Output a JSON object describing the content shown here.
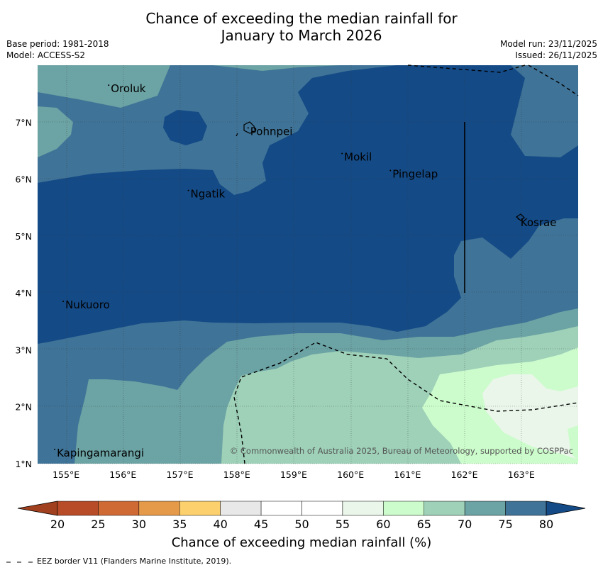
{
  "header": {
    "title_line1": "Chance of exceeding the median rainfall for",
    "title_line2": "January to March 2026",
    "base_period": "Base period: 1981-2018",
    "model": "Model: ACCESS-S2",
    "model_run": "Model run: 23/11/2025",
    "issued": "Issued: 26/11/2025"
  },
  "map": {
    "lon_ticks": [
      "155°E",
      "156°E",
      "157°E",
      "158°E",
      "159°E",
      "160°E",
      "161°E",
      "162°E",
      "163°E"
    ],
    "lat_ticks": [
      "7°N",
      "6°N",
      "5°N",
      "4°N",
      "3°N",
      "2°N",
      "1°N"
    ],
    "places": [
      {
        "name": "Oroluk",
        "lon": 155.75,
        "lat": 7.65
      },
      {
        "name": "Pohnpei",
        "lon": 158.2,
        "lat": 6.9
      },
      {
        "name": "Mokil",
        "lon": 159.85,
        "lat": 6.45
      },
      {
        "name": "Pingelap",
        "lon": 160.7,
        "lat": 6.15
      },
      {
        "name": "Ngatik",
        "lon": 157.15,
        "lat": 5.8
      },
      {
        "name": "Kosrae",
        "lon": 162.95,
        "lat": 5.3
      },
      {
        "name": "Nukuoro",
        "lon": 154.95,
        "lat": 3.85
      },
      {
        "name": "Kapingamarangi",
        "lon": 154.8,
        "lat": 1.25
      }
    ],
    "copyright": "© Commonwealth of Australia 2025, Bureau of Meteorology, supported by COSPPac"
  },
  "colorbar": {
    "levels": [
      20,
      25,
      30,
      35,
      40,
      45,
      50,
      55,
      60,
      65,
      70,
      75,
      80
    ],
    "labels": [
      "20",
      "25",
      "30",
      "35",
      "40",
      "45",
      "50",
      "55",
      "60",
      "65",
      "70",
      "75",
      "80"
    ],
    "colors": [
      "#a0401e",
      "#b84b28",
      "#d06a35",
      "#e59a4a",
      "#fdd06e",
      "#e8e8e8",
      "#ffffff",
      "#ffffff",
      "#eaf6ea",
      "#ccfccc",
      "#9ed1b8",
      "#6ca3a4",
      "#3f7397",
      "#144a86"
    ],
    "title": "Chance of exceeding median rainfall (%)"
  },
  "legend": {
    "eez": "EEZ border V11 (Flanders Marine Institute, 2019)."
  }
}
